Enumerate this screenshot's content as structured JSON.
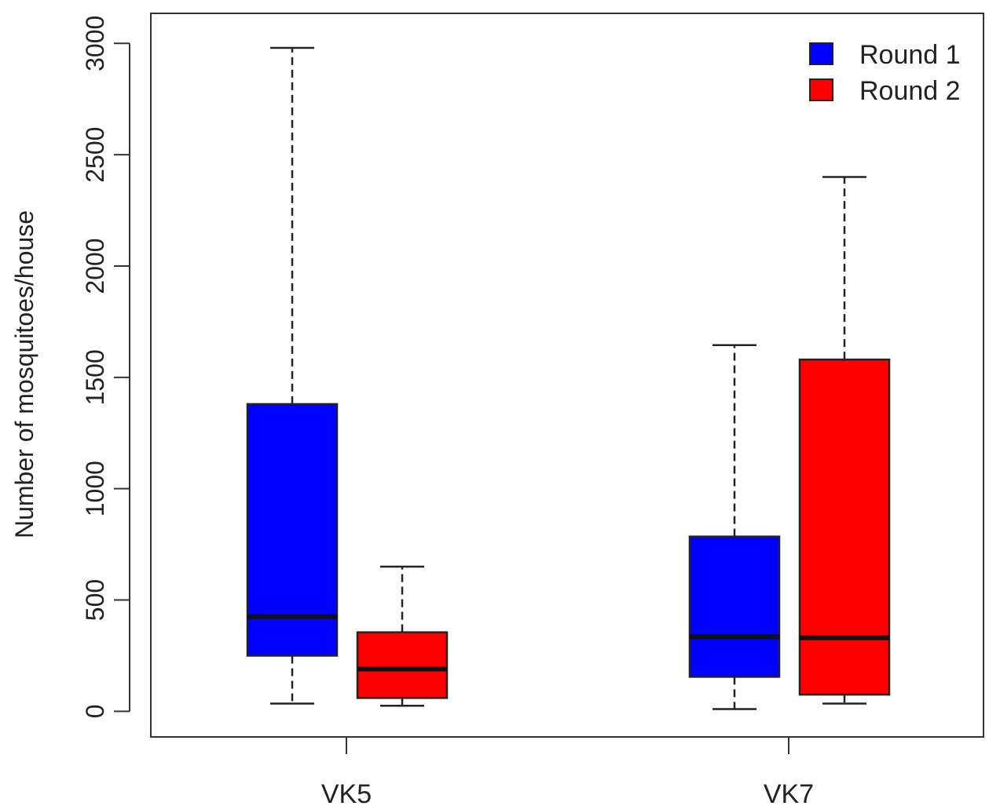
{
  "chart_data": {
    "type": "box",
    "ylabel": "Number of mosquitoes/house",
    "xlabel": "",
    "ylim": [
      -115,
      3135
    ],
    "yticks": [
      0,
      500,
      1000,
      1500,
      2000,
      2500,
      3000
    ],
    "ytick_labels": [
      "0",
      "500",
      "1000",
      "1500",
      "2000",
      "2500",
      "3000"
    ],
    "categories": [
      "VK5",
      "VK7"
    ],
    "legend": {
      "position": "top-right"
    },
    "series": [
      {
        "name": "Round 1",
        "color": "#0000ff",
        "boxes": [
          {
            "category": "VK5",
            "whisker_low": 35,
            "q1": 250,
            "median": 425,
            "q3": 1380,
            "whisker_high": 2980
          },
          {
            "category": "VK7",
            "whisker_low": 10,
            "q1": 155,
            "median": 335,
            "q3": 785,
            "whisker_high": 1645
          }
        ]
      },
      {
        "name": "Round 2",
        "color": "#ff0000",
        "boxes": [
          {
            "category": "VK5",
            "whisker_low": 25,
            "q1": 60,
            "median": 190,
            "q3": 355,
            "whisker_high": 650
          },
          {
            "category": "VK7",
            "whisker_low": 35,
            "q1": 75,
            "median": 330,
            "q3": 1580,
            "whisker_high": 2400
          }
        ]
      }
    ]
  }
}
